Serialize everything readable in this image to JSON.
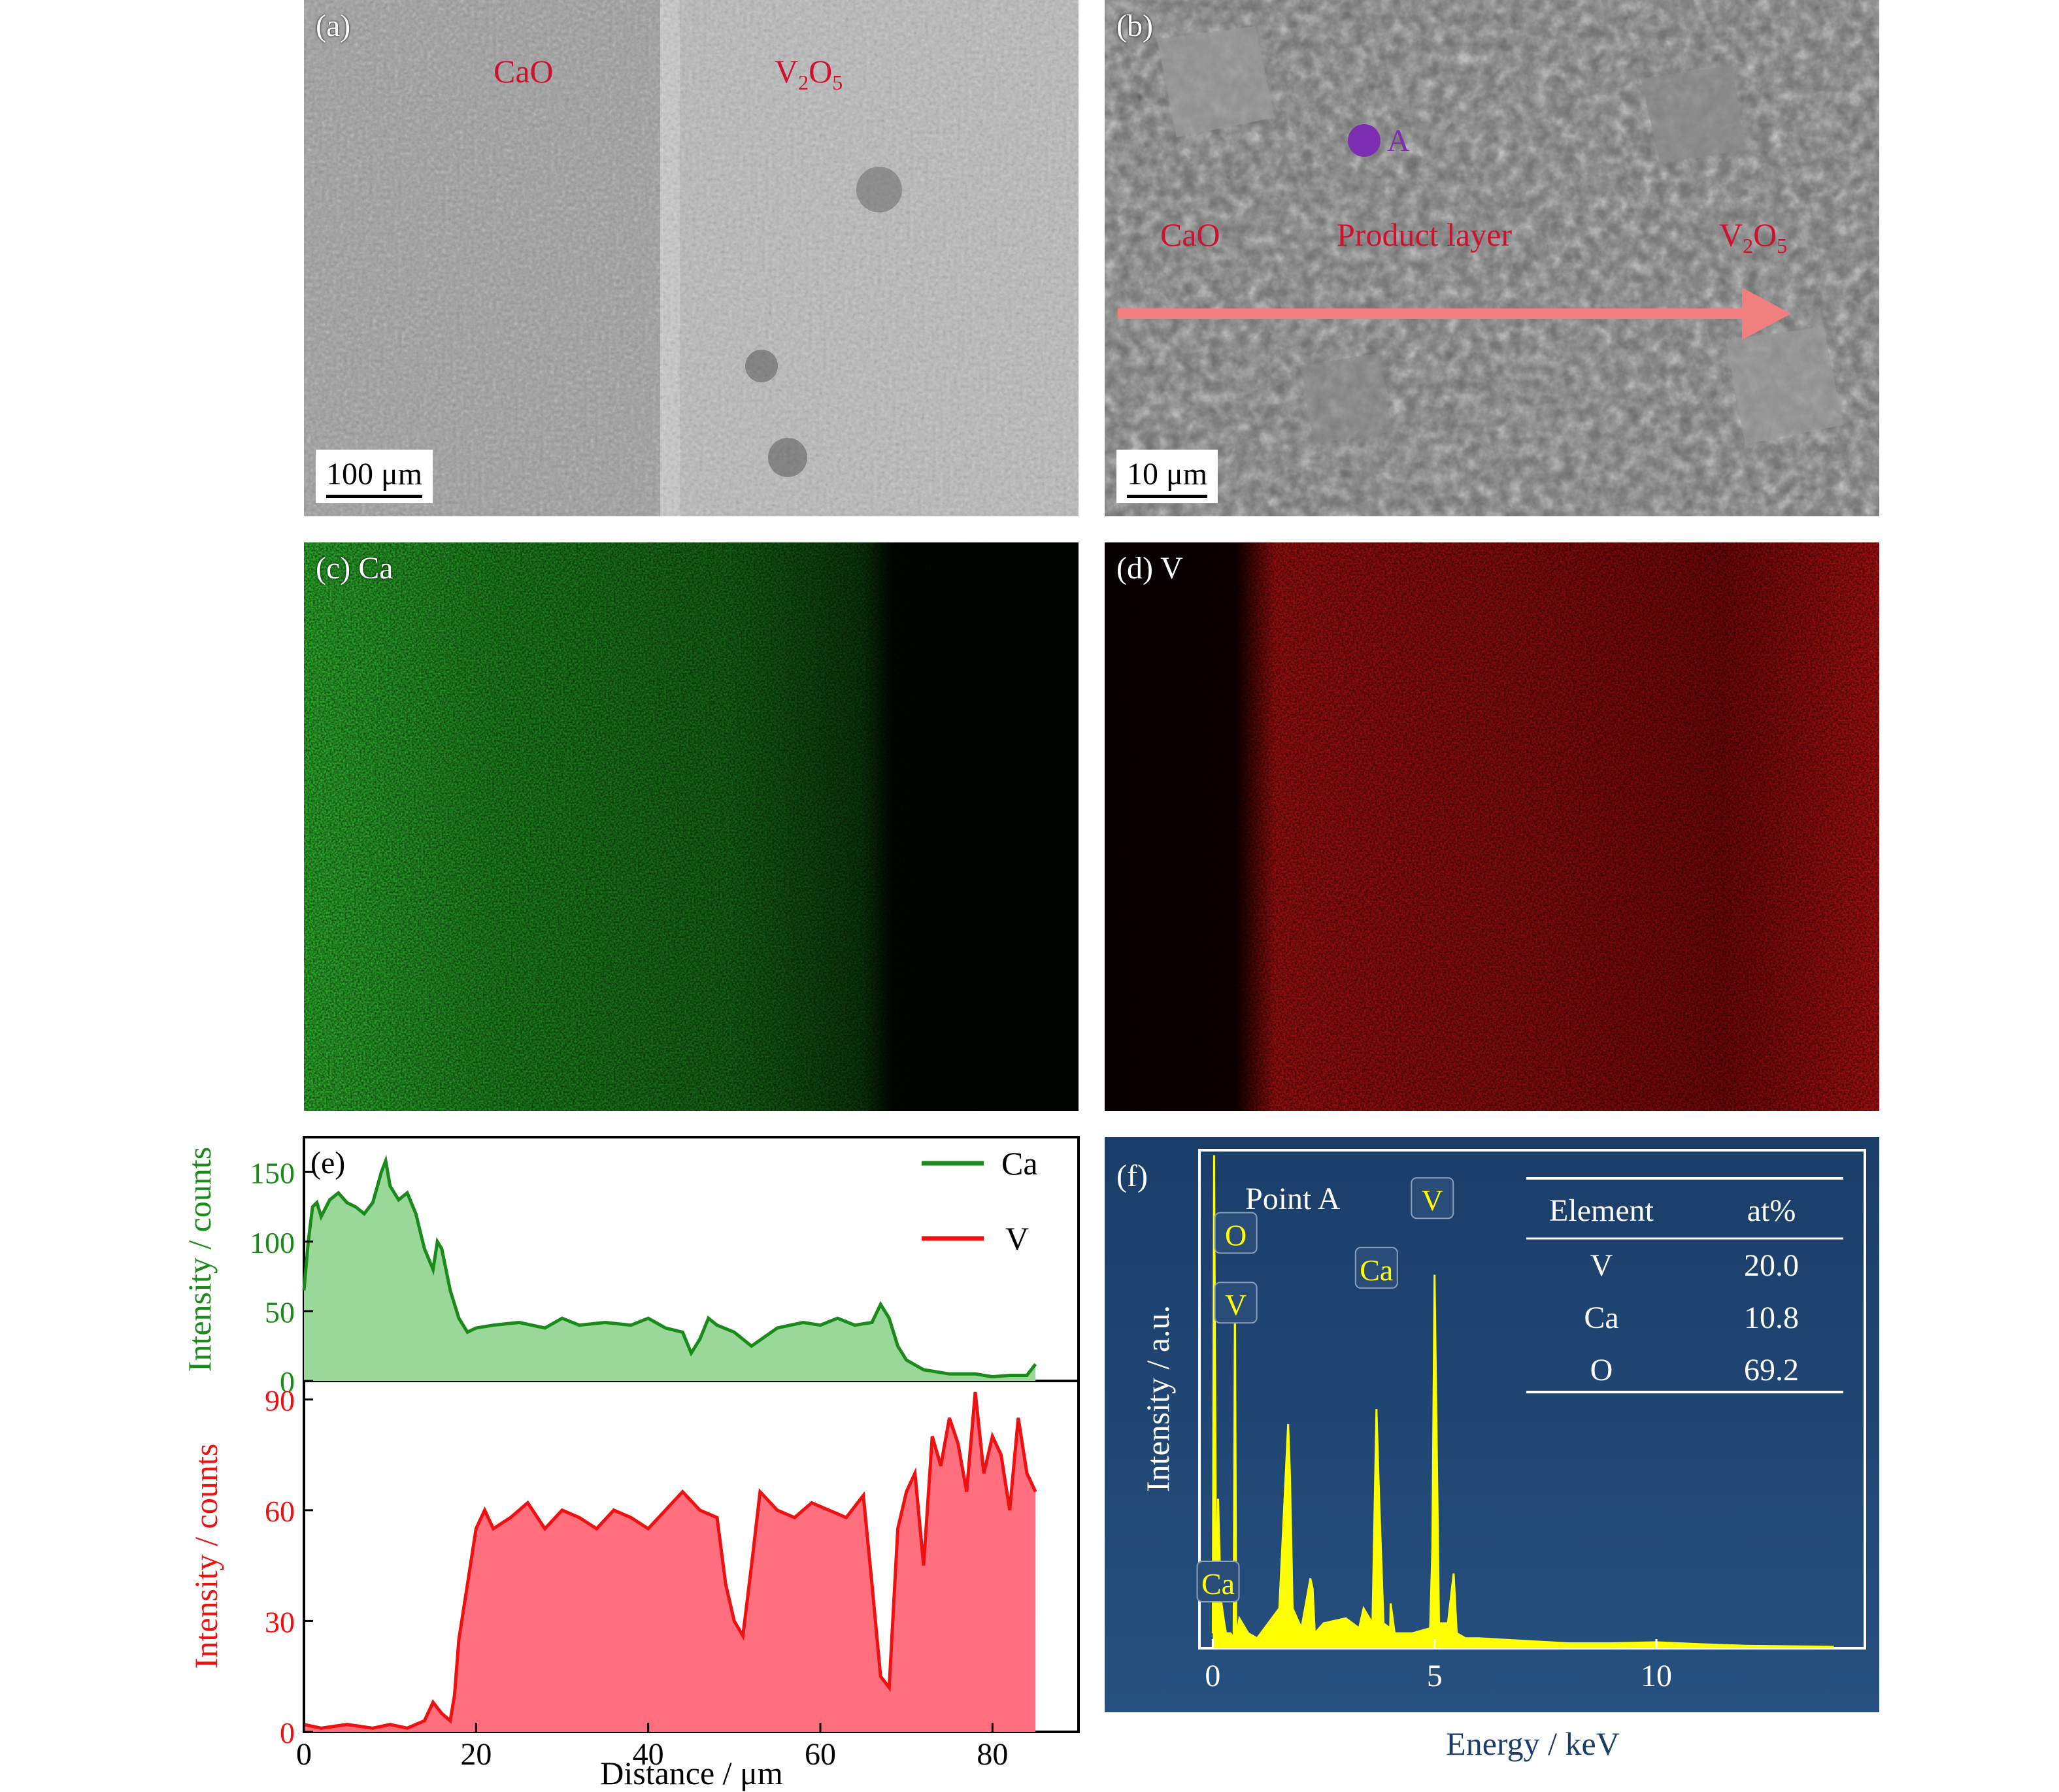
{
  "panels": {
    "a": {
      "label": "(a)",
      "tag_left": "CaO",
      "tag_right_main": "V",
      "tag_right_sub1": "2",
      "tag_right_mid": "O",
      "tag_right_sub2": "5",
      "scale": "100 μm"
    },
    "b": {
      "label": "(b)",
      "point": "A",
      "tag_left": "CaO",
      "tag_mid": "Product layer",
      "tag_right_main": "V",
      "tag_right_sub1": "2",
      "tag_right_mid": "O",
      "tag_right_sub2": "5",
      "scale": "10 μm"
    },
    "c": {
      "label": "(c) Ca"
    },
    "d": {
      "label": "(d) V"
    },
    "e": {
      "label": "(e)"
    },
    "f": {
      "label": "(f)",
      "point": "Point A"
    }
  },
  "colors": {
    "ca": "#1a8a1a",
    "v": "#ee1111",
    "spectrum": "#ffff00",
    "panel_f_bg": "#1b3d69",
    "arrow": "#f08080"
  },
  "chart_data": [
    {
      "type": "area",
      "panel": "(e)",
      "xlabel": "Distance / μm",
      "x_ticks": [
        "0",
        "20",
        "40",
        "60",
        "80"
      ],
      "xlim": [
        0,
        90
      ],
      "series": [
        {
          "name": "Ca",
          "ylabel": "Intensity / counts",
          "ylim": [
            0,
            175
          ],
          "y_ticks": [
            "0",
            "50",
            "100",
            "150"
          ],
          "x": [
            0,
            0.5,
            1,
            1.5,
            2,
            3,
            4,
            5,
            6,
            7,
            8,
            9,
            9.5,
            10,
            11,
            12,
            13,
            14,
            15,
            15.5,
            16,
            16.5,
            17,
            18,
            19,
            20,
            22,
            25,
            28,
            30,
            32,
            35,
            38,
            40,
            42,
            44,
            45,
            46,
            47,
            48,
            50,
            52,
            55,
            58,
            60,
            62,
            64,
            66,
            67,
            68,
            69,
            70,
            72,
            75,
            78,
            80,
            82,
            84,
            85
          ],
          "y": [
            65,
            100,
            125,
            128,
            118,
            130,
            135,
            128,
            125,
            120,
            128,
            150,
            158,
            140,
            130,
            135,
            120,
            95,
            80,
            100,
            95,
            80,
            65,
            45,
            35,
            38,
            40,
            42,
            38,
            45,
            40,
            42,
            40,
            45,
            38,
            35,
            20,
            30,
            45,
            40,
            35,
            25,
            38,
            42,
            40,
            45,
            40,
            42,
            55,
            45,
            25,
            15,
            8,
            5,
            5,
            3,
            4,
            4,
            12
          ]
        },
        {
          "name": "V",
          "ylabel": "Intensity / counts",
          "ylim": [
            0,
            95
          ],
          "y_ticks": [
            "0",
            "30",
            "60",
            "90"
          ],
          "x": [
            0,
            2,
            5,
            8,
            10,
            12,
            14,
            15,
            16,
            17,
            17.5,
            18,
            19,
            20,
            21,
            22,
            24,
            26,
            28,
            30,
            32,
            34,
            36,
            38,
            40,
            42,
            44,
            46,
            48,
            49,
            50,
            51,
            52,
            53,
            55,
            57,
            59,
            61,
            63,
            65,
            66,
            67,
            68,
            69,
            70,
            71,
            72,
            73,
            74,
            75,
            76,
            77,
            78,
            79,
            80,
            81,
            82,
            83,
            84,
            85
          ],
          "y": [
            2,
            1,
            2,
            1,
            2,
            1,
            3,
            8,
            5,
            3,
            10,
            25,
            40,
            55,
            60,
            55,
            58,
            62,
            55,
            60,
            58,
            55,
            60,
            58,
            55,
            60,
            65,
            60,
            58,
            40,
            30,
            26,
            45,
            65,
            60,
            58,
            62,
            60,
            58,
            64,
            40,
            15,
            12,
            55,
            65,
            70,
            45,
            80,
            72,
            85,
            78,
            65,
            92,
            70,
            80,
            75,
            60,
            85,
            70,
            65
          ]
        }
      ]
    },
    {
      "type": "line",
      "panel": "(f)",
      "xlabel": "Energy / keV",
      "ylabel": "Intensity / a.u.",
      "x_ticks": [
        "0",
        "5",
        "10"
      ],
      "xlim": [
        -0.3,
        14.7
      ],
      "ylim": [
        0,
        100
      ],
      "series": [
        {
          "name": "Point A",
          "x": [
            0,
            0.03,
            0.08,
            0.12,
            0.18,
            0.26,
            0.3,
            0.4,
            0.47,
            0.5,
            0.53,
            0.6,
            0.8,
            1,
            1.5,
            1.7,
            1.74,
            1.8,
            2.0,
            2.2,
            2.25,
            2.3,
            2.5,
            3.0,
            3.3,
            3.4,
            3.6,
            3.69,
            3.75,
            3.85,
            4.0,
            4.01,
            4.1,
            4.5,
            4.9,
            4.95,
            5.0,
            5.1,
            5.3,
            5.43,
            5.5,
            5.7,
            6.0,
            7.0,
            8.0,
            9.0,
            10.0,
            11.0,
            12.0,
            13.0,
            14.0
          ],
          "y": [
            3,
            99,
            3,
            30,
            10,
            5,
            3,
            3,
            2,
            70,
            2,
            6,
            3,
            2,
            8,
            45,
            35,
            8,
            4,
            14,
            12,
            3,
            5,
            6,
            4,
            8,
            5,
            48,
            30,
            5,
            4,
            9,
            3,
            3,
            4,
            20,
            75,
            5,
            5,
            15,
            3,
            2,
            2,
            1.5,
            1,
            1,
            1.2,
            0.8,
            0.5,
            0.4,
            0.3
          ]
        }
      ],
      "peak_labels": [
        "O",
        "V",
        "Ca",
        "V",
        "Ca"
      ]
    }
  ],
  "table": {
    "headers": [
      "Element",
      "at%"
    ],
    "rows": [
      [
        "V",
        "20.0"
      ],
      [
        "Ca",
        "10.8"
      ],
      [
        "O",
        "69.2"
      ]
    ]
  }
}
